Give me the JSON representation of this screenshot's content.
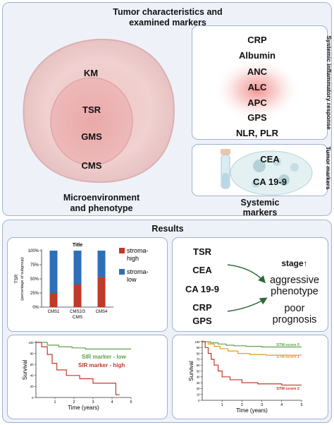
{
  "top": {
    "title_line1": "Tumor characteristics and",
    "title_line2": "examined markers",
    "micro": {
      "items": [
        "KM",
        "TSR",
        "GMS",
        "CMS"
      ],
      "label_line1": "Microenvironment",
      "label_line2": "and phenotype"
    },
    "systemic_inflammatory": {
      "side_label": "Systemic inflammatory response",
      "items": [
        "CRP",
        "Albumin",
        "ANC",
        "ALC",
        "APC",
        "GPS",
        "NLR, PLR"
      ]
    },
    "tumor_markers": {
      "side_label": "Tumor markers",
      "items": [
        "CEA",
        "CA 19-9"
      ]
    },
    "systemic_label_line1": "Systemic",
    "systemic_label_line2": "markers"
  },
  "results": {
    "title": "Results",
    "middle": {
      "left_items": [
        "TSR",
        "CEA",
        "CA 19-9",
        "CRP",
        "GPS"
      ],
      "outcome_stage": "stage",
      "outcome_arrow": "↑",
      "outcome_aggr_1": "aggressive",
      "outcome_aggr_2": "phenotype",
      "outcome_poor_1": "poor",
      "outcome_poor_2": "prognosis"
    }
  },
  "chart_data": [
    {
      "type": "bar",
      "stacked": true,
      "title": "Title",
      "categories": [
        "CMS1",
        "CMS2/3",
        "CMS4"
      ],
      "series": [
        {
          "name": "stroma-high",
          "values": [
            25,
            40,
            53
          ],
          "color": "#c0392b"
        },
        {
          "name": "stroma-low",
          "values": [
            75,
            60,
            47
          ],
          "color": "#2e6fb7"
        }
      ],
      "xlabel": "CMS",
      "ylabel": "TSR",
      "ylabel_sub": "(percentage of subgroup)",
      "yticks": [
        "0%",
        "25%",
        "50%",
        "75%",
        "100%"
      ],
      "ylim": [
        0,
        100
      ],
      "legend_high_1": "stroma-",
      "legend_high_2": "high",
      "legend_low_1": "stroma-",
      "legend_low_2": "low",
      "legend": "right"
    },
    {
      "type": "line",
      "step": true,
      "xlabel": "Time (years)",
      "ylabel": "Survival",
      "xticks": [
        "1",
        "2",
        "3",
        "4",
        "5"
      ],
      "yticks": [
        "0",
        "20",
        "40",
        "60",
        "80",
        "100"
      ],
      "xlim": [
        0,
        5
      ],
      "ylim": [
        0,
        100
      ],
      "series": [
        {
          "name": "SIR marker - low",
          "color": "#5ea34a",
          "x": [
            0,
            0.6,
            1.2,
            1.9,
            2.6,
            5
          ],
          "y": [
            100,
            95,
            92,
            90,
            88,
            88
          ]
        },
        {
          "name": "SIR marker - high",
          "color": "#c0392b",
          "x": [
            0,
            0.3,
            0.6,
            0.85,
            1.1,
            1.6,
            2.3,
            3.0,
            4.2,
            4.4
          ],
          "y": [
            100,
            92,
            78,
            62,
            50,
            40,
            34,
            26,
            5,
            5
          ]
        }
      ]
    },
    {
      "type": "line",
      "step": true,
      "xlabel": "Time (years)",
      "ylabel": "Survival",
      "xticks": [
        "1",
        "2",
        "3",
        "4",
        "5"
      ],
      "yticks": [
        "0",
        "10",
        "20",
        "30",
        "40",
        "50",
        "60",
        "70",
        "80",
        "90",
        "100"
      ],
      "xlim": [
        0,
        5
      ],
      "ylim": [
        0,
        100
      ],
      "series": [
        {
          "name": "STM-score 0",
          "color": "#5ea34a",
          "x": [
            0,
            0.4,
            0.8,
            1.2,
            1.6,
            2.2,
            3.0,
            5
          ],
          "y": [
            100,
            98,
            96,
            94,
            93,
            92,
            91,
            91
          ]
        },
        {
          "name": "STM-score 1",
          "color": "#e39a2d",
          "x": [
            0,
            0.3,
            0.6,
            0.9,
            1.3,
            1.8,
            2.4,
            3.2,
            5
          ],
          "y": [
            100,
            96,
            92,
            88,
            84,
            80,
            78,
            77,
            77
          ]
        },
        {
          "name": "STM-score 2",
          "color": "#c0392b",
          "x": [
            0,
            0.15,
            0.3,
            0.45,
            0.6,
            0.8,
            1.0,
            1.4,
            2.0,
            2.8,
            4.0,
            5
          ],
          "y": [
            100,
            90,
            80,
            70,
            60,
            50,
            40,
            35,
            30,
            28,
            26,
            26
          ]
        }
      ]
    }
  ]
}
